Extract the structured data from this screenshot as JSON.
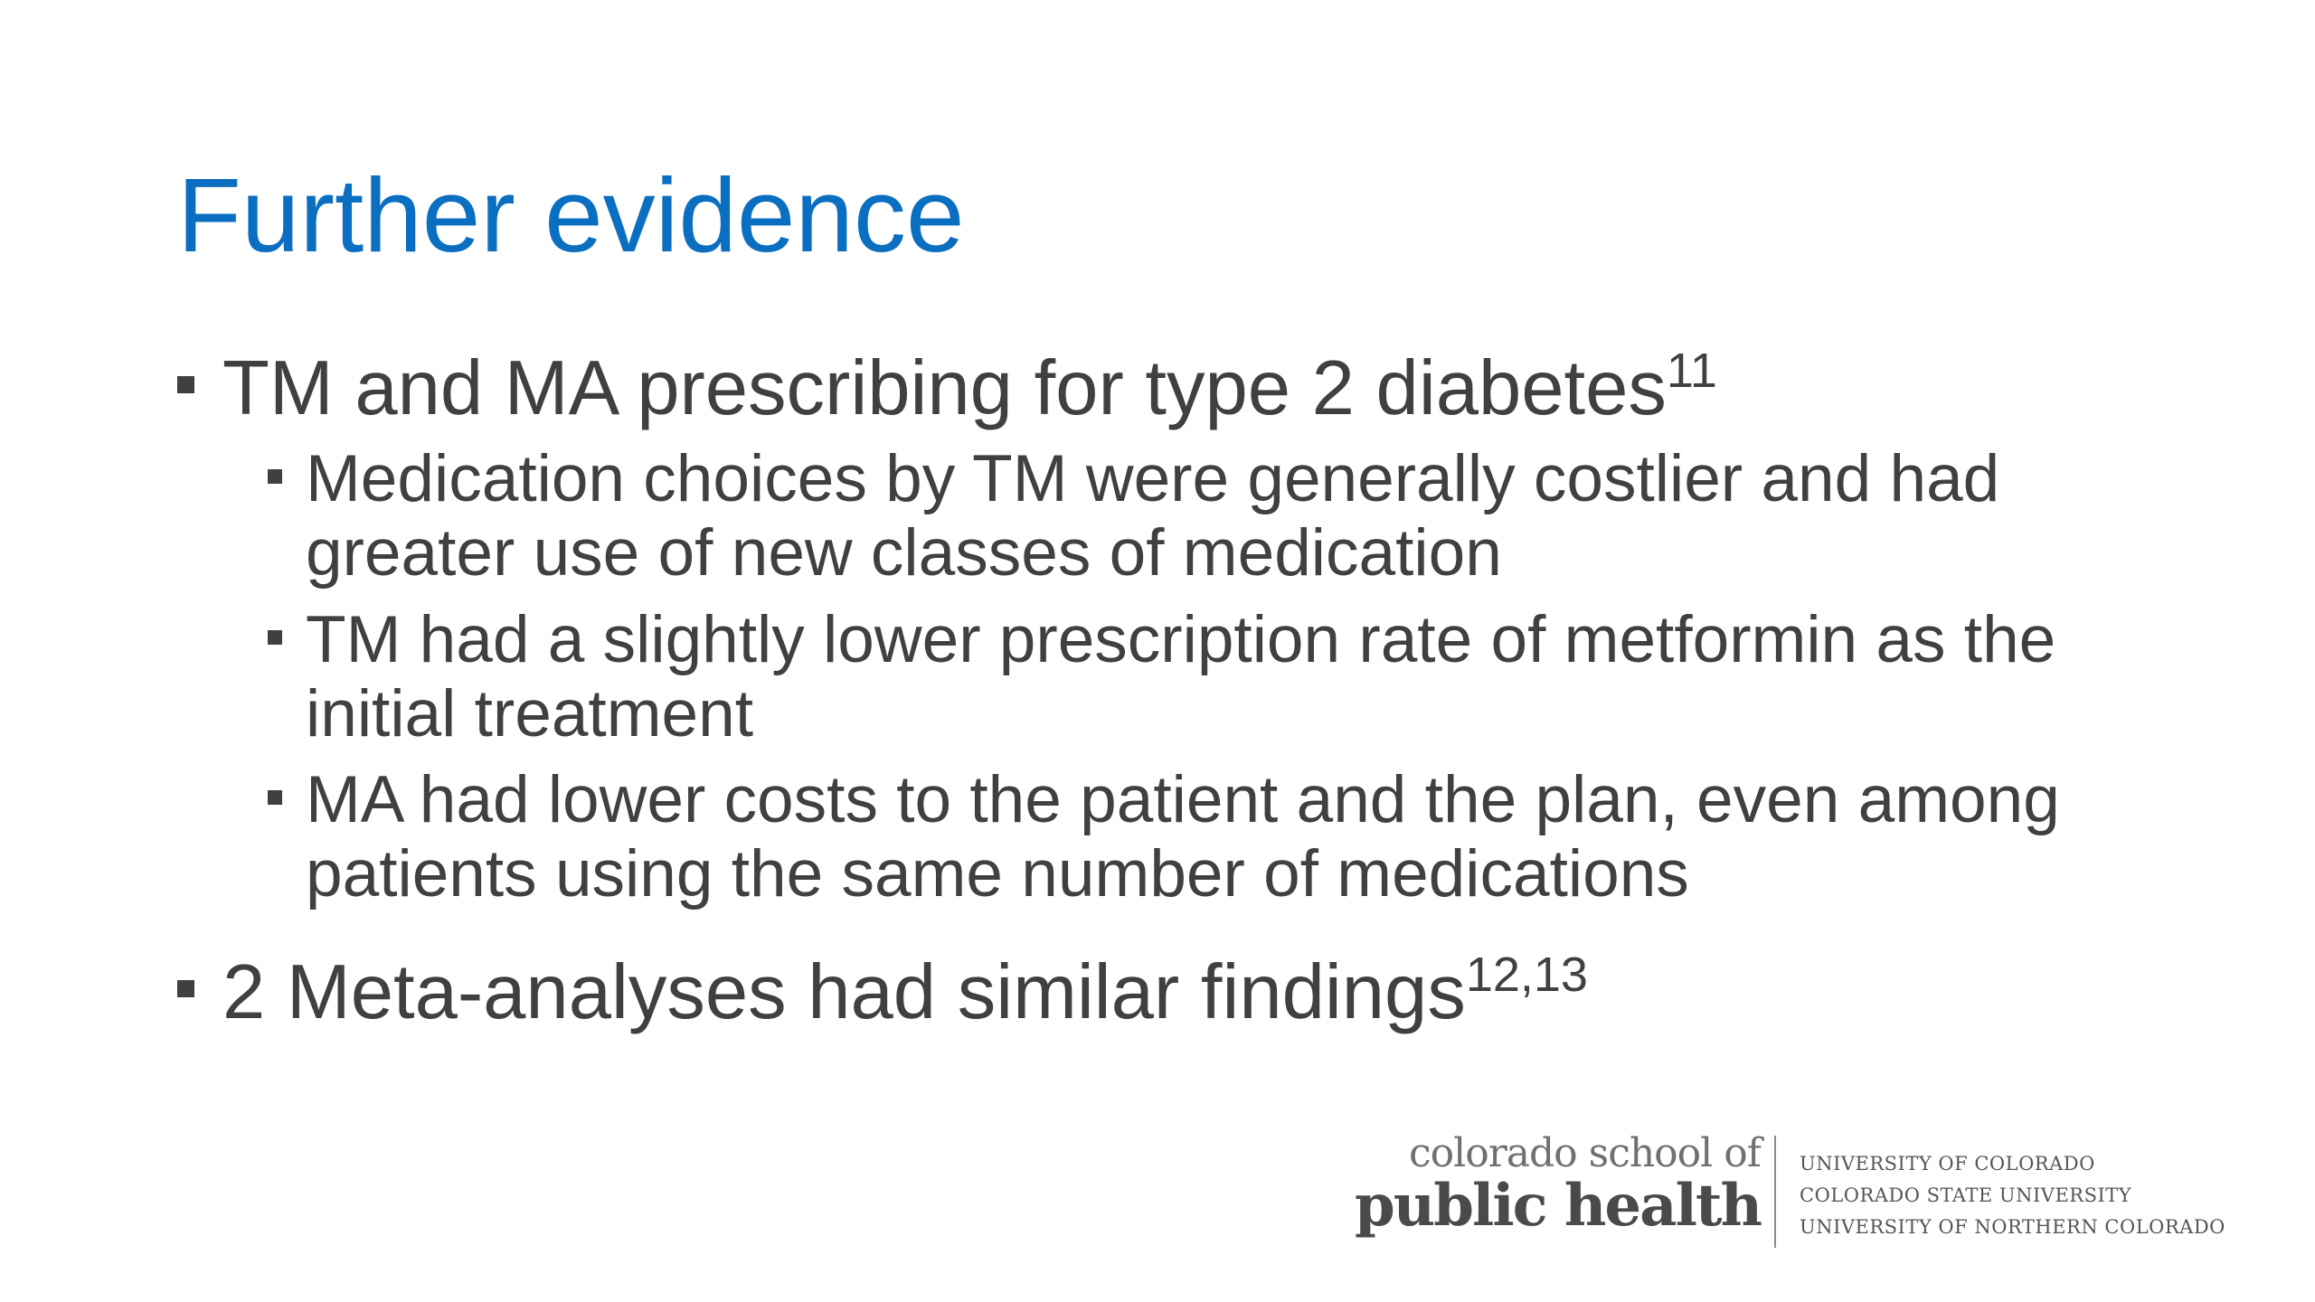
{
  "slide": {
    "title": "Further evidence",
    "bullets": [
      {
        "text": "TM and MA prescribing for type 2 diabetes",
        "superscript": "11",
        "subbullets": [
          "Medication choices by TM were generally costlier and had greater use of new classes of medication",
          "TM had a slightly lower prescription rate of metformin as the initial treatment",
          "MA had lower costs to the patient and the plan, even among patients using the same number of medications"
        ]
      },
      {
        "text": "2 Meta-analyses had similar findings",
        "superscript": "12,13"
      }
    ]
  },
  "logo": {
    "line1": "colorado school of",
    "line2": "public health",
    "affiliations": [
      "UNIVERSITY OF COLORADO",
      "COLORADO STATE UNIVERSITY",
      "UNIVERSITY OF NORTHERN COLORADO"
    ]
  },
  "colors": {
    "title": "#0b6fc1",
    "body_text": "#404040",
    "background": "#ffffff"
  }
}
